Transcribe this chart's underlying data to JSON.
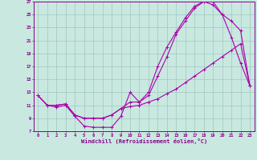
{
  "xlabel": "Windchill (Refroidissement éolien,°C)",
  "xlim": [
    -0.5,
    23.5
  ],
  "ylim": [
    7,
    27
  ],
  "xticks": [
    0,
    1,
    2,
    3,
    4,
    5,
    6,
    7,
    8,
    9,
    10,
    11,
    12,
    13,
    14,
    15,
    16,
    17,
    18,
    19,
    20,
    21,
    22,
    23
  ],
  "yticks": [
    7,
    9,
    11,
    13,
    15,
    17,
    19,
    21,
    23,
    25,
    27
  ],
  "bg_color": "#c8e8e0",
  "grid_color": "#a0c8c0",
  "line_color": "#aa00aa",
  "tick_color": "#880088",
  "line1_x": [
    0,
    1,
    2,
    3,
    4,
    5,
    6,
    7,
    8,
    9,
    10,
    11,
    12,
    13,
    14,
    15,
    16,
    17,
    18,
    19,
    20,
    21,
    22,
    23
  ],
  "line1_y": [
    12.5,
    11.0,
    10.7,
    11.0,
    9.3,
    7.8,
    7.6,
    7.6,
    7.6,
    9.3,
    13.0,
    11.5,
    13.0,
    17.0,
    20.0,
    22.3,
    24.5,
    26.3,
    27.0,
    27.0,
    25.0,
    21.5,
    17.5,
    14.0
  ],
  "line2_x": [
    0,
    1,
    2,
    3,
    4,
    5,
    6,
    7,
    8,
    9,
    10,
    11,
    12,
    13,
    14,
    15,
    16,
    17,
    18,
    19,
    20,
    21,
    22,
    23
  ],
  "line2_y": [
    12.5,
    11.0,
    11.0,
    11.2,
    9.5,
    9.0,
    9.0,
    9.0,
    9.5,
    10.5,
    11.5,
    11.5,
    12.5,
    15.5,
    18.5,
    22.0,
    24.0,
    26.0,
    27.0,
    26.5,
    25.0,
    24.0,
    22.5,
    14.0
  ],
  "line3_x": [
    0,
    1,
    2,
    3,
    4,
    5,
    6,
    7,
    8,
    9,
    10,
    11,
    12,
    13,
    14,
    15,
    16,
    17,
    18,
    19,
    20,
    21,
    22,
    23
  ],
  "line3_y": [
    12.5,
    11.0,
    11.0,
    11.2,
    9.5,
    9.0,
    9.0,
    9.0,
    9.5,
    10.5,
    10.8,
    11.0,
    11.5,
    12.0,
    12.8,
    13.5,
    14.5,
    15.5,
    16.5,
    17.5,
    18.5,
    19.5,
    20.5,
    14.0
  ]
}
